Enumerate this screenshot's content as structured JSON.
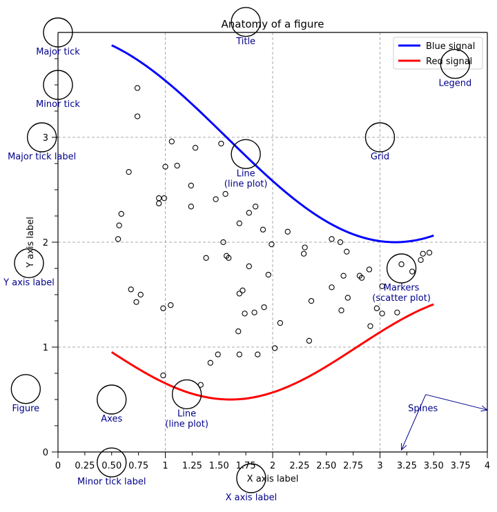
{
  "chart_data": {
    "type": "line",
    "title": "Anatomy of a figure",
    "xlabel": "X axis label",
    "ylabel": "Y axis label",
    "xlim": [
      0,
      4
    ],
    "ylim": [
      0,
      4
    ],
    "x_major_ticks": [
      {
        "value": 0,
        "label": "0"
      },
      {
        "value": 1,
        "label": "1"
      },
      {
        "value": 2,
        "label": "2"
      },
      {
        "value": 3,
        "label": "3"
      },
      {
        "value": 4,
        "label": "4"
      }
    ],
    "x_minor_ticks": [
      {
        "value": 0.25,
        "label": "0.25"
      },
      {
        "value": 0.5,
        "label": "0.50"
      },
      {
        "value": 0.75,
        "label": "0.75"
      },
      {
        "value": 1.25,
        "label": "1.25"
      },
      {
        "value": 1.5,
        "label": "1.50"
      },
      {
        "value": 1.75,
        "label": "1.75"
      },
      {
        "value": 2.25,
        "label": "2.25"
      },
      {
        "value": 2.5,
        "label": "2.50"
      },
      {
        "value": 2.75,
        "label": "2.75"
      },
      {
        "value": 3.25,
        "label": "3.25"
      },
      {
        "value": 3.5,
        "label": "3.50"
      },
      {
        "value": 3.75,
        "label": "3.75"
      }
    ],
    "y_major_ticks": [
      {
        "value": 0,
        "label": "0"
      },
      {
        "value": 1,
        "label": "1"
      },
      {
        "value": 2,
        "label": "2"
      },
      {
        "value": 3,
        "label": "3"
      }
    ],
    "y_minor_ticks": [
      0.25,
      0.5,
      0.75,
      1.25,
      1.5,
      1.75,
      2.25,
      2.5,
      2.75,
      3.25,
      3.5,
      3.75
    ],
    "grid": true,
    "legend_position": "top-right",
    "series": [
      {
        "name": "Blue signal",
        "color": "#0000ff",
        "x_start": 0.5,
        "x_end": 3.5,
        "formula": "3 + cos(x)",
        "points": 80
      },
      {
        "name": "Red signal",
        "color": "#ff0000",
        "x_start": 0.5,
        "x_end": 3.5,
        "formula": "1 + cos(1 + x/0.75) / 2",
        "points": 80
      }
    ],
    "scatter": {
      "name": "Markers",
      "marker": "circle-open",
      "x": [
        0.74,
        0.74,
        1.06,
        1.28,
        1.52,
        1.0,
        1.11,
        0.66,
        1.24,
        1.47,
        1.56,
        0.99,
        0.94,
        1.24,
        1.84,
        1.78,
        0.59,
        0.57,
        1.69,
        1.91,
        0.56,
        2.14,
        1.54,
        1.99,
        2.55,
        2.63,
        2.3,
        2.29,
        2.69,
        1.38,
        1.57,
        1.59,
        0.94,
        1.78,
        2.9,
        1.96,
        2.81,
        2.83,
        2.66,
        3.02,
        0.68,
        0.77,
        1.72,
        1.69,
        2.55,
        2.7,
        0.73,
        2.36,
        1.05,
        0.98,
        1.92,
        2.64,
        1.83,
        1.74,
        2.97,
        3.02,
        2.07,
        2.91,
        3.16,
        1.68,
        2.34,
        2.02,
        1.49,
        1.69,
        1.86,
        1.42,
        0.98,
        1.33,
        3.4,
        3.46,
        3.38,
        3.3,
        3.2
      ],
      "y": [
        3.47,
        3.2,
        2.96,
        2.9,
        2.94,
        2.72,
        2.73,
        2.67,
        2.54,
        2.41,
        2.46,
        2.42,
        2.37,
        2.34,
        2.34,
        2.28,
        2.27,
        2.16,
        2.18,
        2.12,
        2.03,
        2.1,
        2.0,
        1.98,
        2.03,
        2.0,
        1.95,
        1.89,
        1.91,
        1.85,
        1.87,
        1.85,
        2.42,
        1.77,
        1.74,
        1.69,
        1.68,
        1.66,
        1.68,
        1.58,
        1.55,
        1.5,
        1.54,
        1.51,
        1.57,
        1.47,
        1.43,
        1.44,
        1.4,
        1.37,
        1.38,
        1.35,
        1.33,
        1.32,
        1.37,
        1.32,
        1.23,
        1.2,
        1.33,
        1.15,
        1.06,
        0.99,
        0.93,
        0.93,
        0.93,
        0.85,
        0.73,
        0.64,
        1.89,
        1.9,
        1.83,
        1.72,
        1.79
      ]
    },
    "annotations": [
      {
        "id": "major-tick",
        "label": "Major tick",
        "x": 0,
        "y": 4
      },
      {
        "id": "minor-tick",
        "label": "Minor tick",
        "x": 0,
        "y": 3.5
      },
      {
        "id": "major-tick-label",
        "label": "Major tick label",
        "x": -0.15,
        "y": 3
      },
      {
        "id": "title",
        "label": "Title",
        "x": 1.75,
        "y": 4.1
      },
      {
        "id": "legend",
        "label": "Legend",
        "x": 3.7,
        "y": 3.7
      },
      {
        "id": "grid",
        "label": "Grid",
        "x": 3,
        "y": 3
      },
      {
        "id": "line-blue",
        "label": "Line\n(line plot)",
        "x": 1.75,
        "y": 2.84
      },
      {
        "id": "y-axis-label",
        "label": "Y axis label",
        "x": -0.27,
        "y": 1.8
      },
      {
        "id": "markers",
        "label": "Markers\n(scatter plot)",
        "x": 3.2,
        "y": 1.75
      },
      {
        "id": "figure",
        "label": "Figure",
        "x": -0.3,
        "y": 0.6
      },
      {
        "id": "axes",
        "label": "Axes",
        "x": 0.5,
        "y": 0.5
      },
      {
        "id": "line-red",
        "label": "Line\n(line plot)",
        "x": 1.2,
        "y": 0.55
      },
      {
        "id": "minor-tick-label",
        "label": "Minor tick label",
        "x": 0.5,
        "y": -0.1
      },
      {
        "id": "x-axis-label",
        "label": "X axis label",
        "x": 1.8,
        "y": -0.25
      },
      {
        "id": "spines",
        "label": "Spines",
        "x": 3.4,
        "y": 0.6,
        "arrow_targets": [
          [
            4.0,
            0.4
          ],
          [
            3.2,
            0.02
          ]
        ]
      }
    ]
  }
}
